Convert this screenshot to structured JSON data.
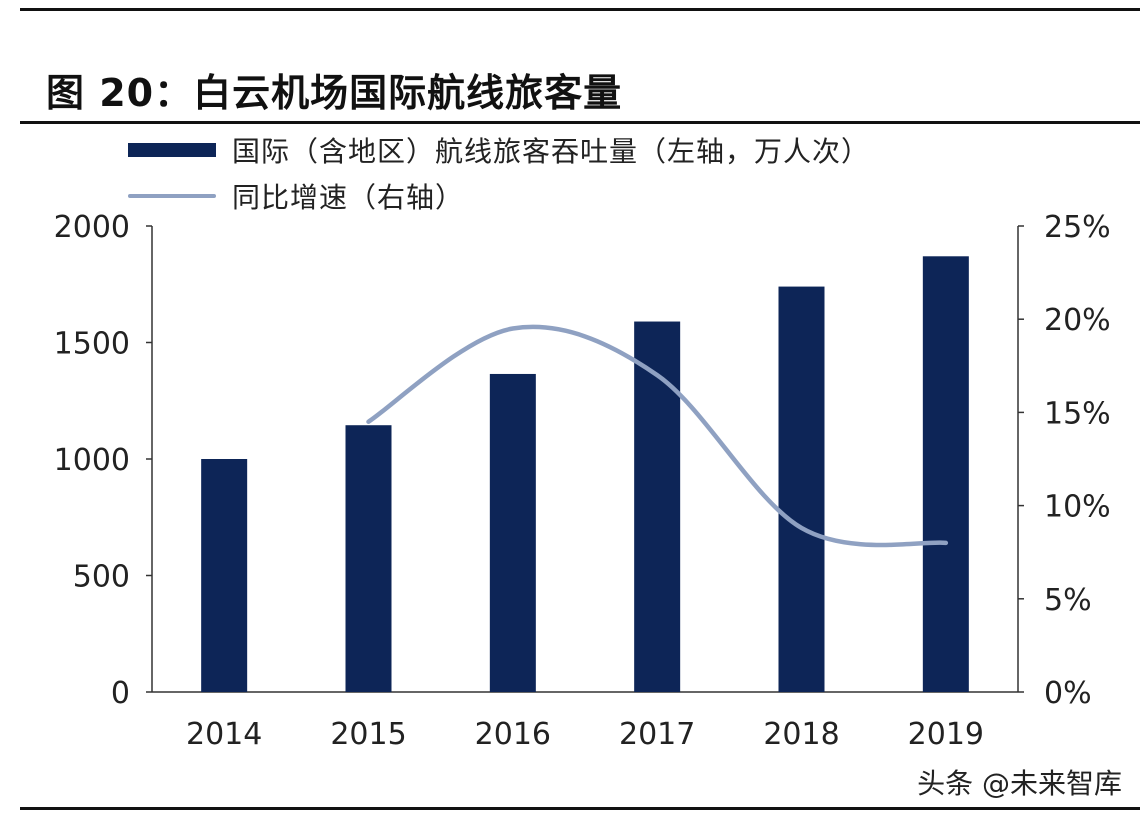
{
  "header": {
    "title": "图 20：白云机场国际航线旅客量"
  },
  "legend": {
    "bar_label": "国际（含地区）航线旅客吞吐量（左轴，万人次）",
    "line_label": "同比增速（右轴）"
  },
  "watermark": "头条 @未来智库",
  "colors": {
    "bar": "#0d2557",
    "line": "#8fa1c2",
    "axis": "#333333"
  },
  "chart_data": {
    "type": "bar",
    "categories": [
      "2014",
      "2015",
      "2016",
      "2017",
      "2018",
      "2019"
    ],
    "series": [
      {
        "name": "国际（含地区）航线旅客吞吐量（左轴，万人次）",
        "type": "bar",
        "axis": "left",
        "values": [
          1000,
          1145,
          1365,
          1590,
          1740,
          1870
        ]
      },
      {
        "name": "同比增速（右轴）",
        "type": "line",
        "axis": "right",
        "values": [
          null,
          14.5,
          19.5,
          17.0,
          8.8,
          8.0
        ]
      }
    ],
    "y_left": {
      "ylim": [
        0,
        2000
      ],
      "ticks": [
        "0",
        "500",
        "1000",
        "1500",
        "2000"
      ],
      "tick_values": [
        0,
        500,
        1000,
        1500,
        2000
      ]
    },
    "y_right": {
      "ylim": [
        0,
        25
      ],
      "ticks": [
        "0%",
        "5%",
        "10%",
        "15%",
        "20%",
        "25%"
      ],
      "tick_values": [
        0,
        5,
        10,
        15,
        20,
        25
      ]
    },
    "grid": false,
    "legend_position": "top-left"
  }
}
